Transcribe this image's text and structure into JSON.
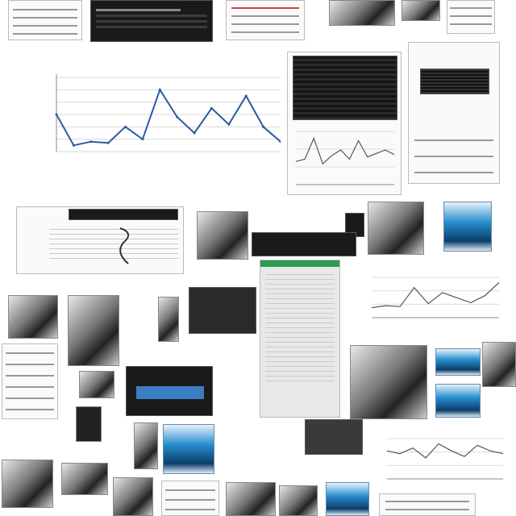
{
  "main_chart": {
    "title_line1": "",
    "title_line2": ""
  },
  "chart_data": [
    {
      "type": "line",
      "title": "",
      "xlabel": "",
      "ylabel": "",
      "x": [
        1,
        2,
        3,
        4,
        5,
        6,
        7,
        8,
        9,
        10,
        11,
        12,
        13,
        14
      ],
      "series": [
        {
          "values": [
            30,
            5,
            8,
            7,
            20,
            10,
            50,
            28,
            15,
            35,
            22,
            45,
            20,
            8
          ]
        }
      ],
      "ylim": [
        0,
        60
      ],
      "grid": true,
      "line_color": "#2c5aa0"
    },
    {
      "type": "line",
      "title": "",
      "x": [
        1,
        2,
        3,
        4,
        5,
        6,
        7,
        8,
        9,
        10,
        11,
        12
      ],
      "series": [
        {
          "values": [
            20,
            22,
            40,
            18,
            25,
            30,
            22,
            38,
            24,
            27,
            30,
            26
          ]
        }
      ],
      "grid": true,
      "line_color": "#555555"
    },
    {
      "type": "line",
      "title": "",
      "x": [
        1,
        2,
        3,
        4,
        5,
        6,
        7,
        8,
        9,
        10
      ],
      "series": [
        {
          "values": [
            10,
            12,
            11,
            30,
            14,
            25,
            20,
            15,
            22,
            35
          ]
        }
      ],
      "grid": true,
      "line_color": "#555555"
    },
    {
      "type": "line",
      "title": "",
      "x": [
        1,
        2,
        3,
        4,
        5,
        6,
        7,
        8,
        9,
        10
      ],
      "series": [
        {
          "values": [
            20,
            18,
            22,
            15,
            25,
            20,
            16,
            24,
            20,
            18
          ]
        }
      ],
      "grid": true,
      "line_color": "#555555"
    }
  ],
  "colors": {
    "accent_blue": "#2c5aa0",
    "panel_dark": "#1a1a1a",
    "spreadsheet_green": "#2f9a52"
  }
}
